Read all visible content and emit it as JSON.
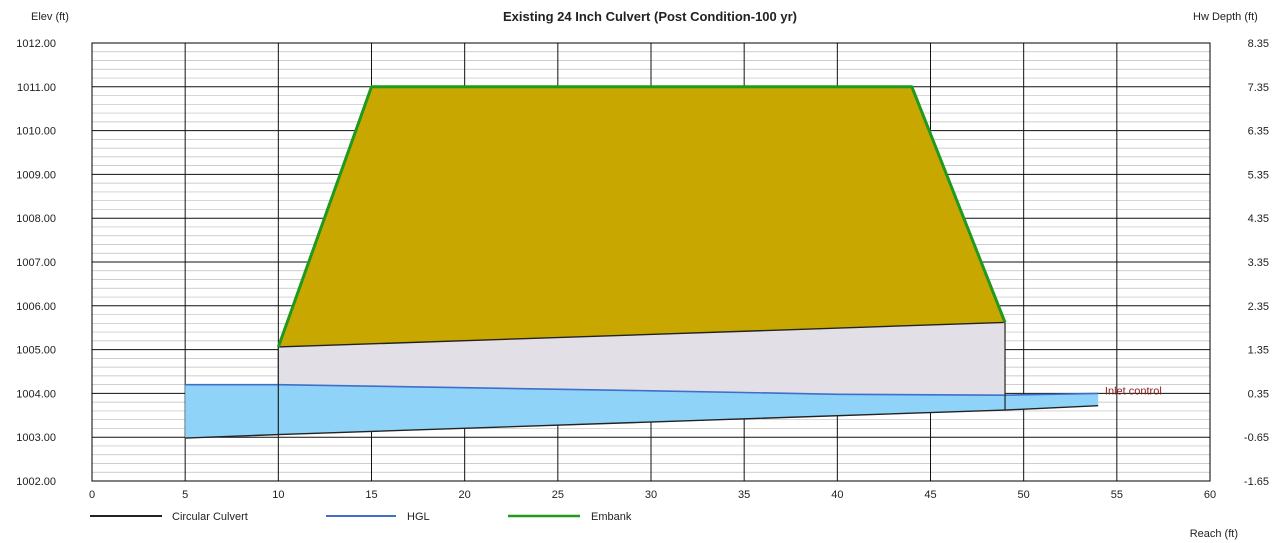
{
  "chart_data": {
    "type": "line",
    "title": "Existing 24 Inch Culvert (Post Condition-100 yr)",
    "y_left_label": "Elev (ft)",
    "y_right_label": "Hw Depth (ft)",
    "xlabel": "Reach (ft)",
    "xlim": [
      0,
      60
    ],
    "ylim": [
      1002.0,
      1012.0
    ],
    "x_ticks": [
      0,
      5,
      10,
      15,
      20,
      25,
      30,
      35,
      40,
      45,
      50,
      55,
      60
    ],
    "y_left_ticks": [
      "1002.00",
      "1003.00",
      "1004.00",
      "1005.00",
      "1006.00",
      "1007.00",
      "1008.00",
      "1009.00",
      "1010.00",
      "1011.00",
      "1012.00"
    ],
    "y_right_ticks": [
      "-1.65",
      "-0.65",
      "0.35",
      "1.35",
      "2.35",
      "3.35",
      "4.35",
      "5.35",
      "6.35",
      "7.35",
      "8.35"
    ],
    "grid": true,
    "legend_position": "bottom-left",
    "colors": {
      "culvert": "#222222",
      "hgl": "#3f6fc8",
      "embank": "#1f9a1f",
      "embank_fill": "#c8a800",
      "culvert_fill": "#e2e0e6",
      "water_fill": "#8fd3f8",
      "annotation": "#8b1c1c"
    },
    "series": [
      {
        "name": "Circular Culvert",
        "invert": [
          [
            5,
            1002.98
          ],
          [
            10,
            1003.06
          ],
          [
            49,
            1003.62
          ],
          [
            54,
            1003.72
          ]
        ],
        "crown": [
          [
            10,
            1005.06
          ],
          [
            49,
            1005.62
          ]
        ]
      },
      {
        "name": "HGL",
        "points": [
          [
            5,
            1004.2
          ],
          [
            10,
            1004.2
          ],
          [
            20,
            1004.13
          ],
          [
            30,
            1004.06
          ],
          [
            40,
            1003.98
          ],
          [
            49,
            1003.96
          ],
          [
            54,
            1004.0
          ]
        ]
      },
      {
        "name": "Embank",
        "points": [
          [
            10,
            1005.06
          ],
          [
            15,
            1011.0
          ],
          [
            44,
            1011.0
          ],
          [
            49,
            1005.62
          ]
        ]
      }
    ],
    "annotations": [
      {
        "text": "Inlet control",
        "x": 54.2,
        "y": 1004.0
      }
    ]
  }
}
